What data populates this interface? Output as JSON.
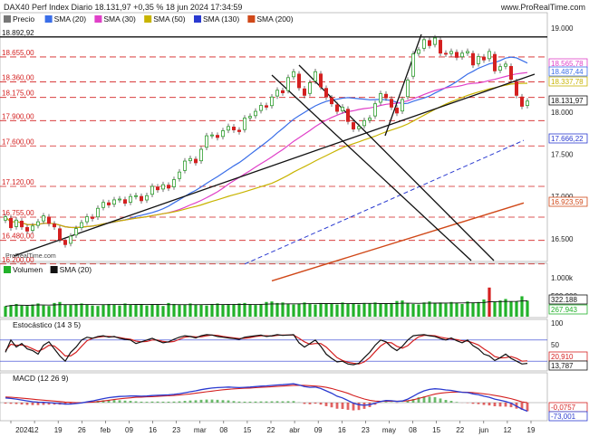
{
  "header": {
    "title": "DAX40 Perf Index Diario 18.131,97 +0,35 % 18 jun 2024 17:34:59",
    "site": "www.ProRealTime.com",
    "watermark": "ProRealTime.com"
  },
  "colors": {
    "up": "#2e9e2e",
    "down": "#d42020",
    "sma20": "#3a6ee8",
    "sma30": "#e040c8",
    "sma50": "#c8b400",
    "sma130": "#2a3ad0",
    "sma200": "#d04818",
    "grid": "#d42020",
    "trend": "#111111",
    "volume": "#22b22a",
    "stoch_k": "#111111",
    "stoch_d": "#d42020",
    "macd": "#2a3ad0",
    "signal": "#d42020"
  },
  "price_panel": {
    "legend": [
      {
        "id": "precio",
        "label": "Precio",
        "color": "#777777"
      },
      {
        "id": "sma20",
        "label": "SMA (20)",
        "color": "#3a6ee8"
      },
      {
        "id": "sma30",
        "label": "SMA (30)",
        "color": "#e040c8"
      },
      {
        "id": "sma50",
        "label": "SMA (50)",
        "color": "#c8b400"
      },
      {
        "id": "sma130",
        "label": "SMA (130)",
        "color": "#2a3ad0"
      },
      {
        "id": "sma200",
        "label": "SMA (200)",
        "color": "#d04818"
      }
    ],
    "left_levels": [
      "18.892,92",
      "18.655,00",
      "18.360,00",
      "18.175,00",
      "17.900,00",
      "17.600,00",
      "17.120,00",
      "16.755,00",
      "16.480,00",
      "16.200,00"
    ],
    "axis_ticks": [
      "19.000",
      "18.500",
      "18.000",
      "17.500",
      "17.000",
      "16.500"
    ],
    "badges": [
      {
        "text": "18.565,78",
        "color": "#e040c8"
      },
      {
        "text": "18.487,44",
        "color": "#3a6ee8"
      },
      {
        "text": "18.337,78",
        "color": "#c8b400"
      },
      {
        "text": "18.131,97",
        "color": "#111111"
      },
      {
        "text": "17.666,22",
        "color": "#2a3ad0"
      },
      {
        "text": "16.923,59",
        "color": "#d04818"
      }
    ]
  },
  "volume_panel": {
    "legend": [
      {
        "label": "Volumen",
        "color": "#22b22a"
      },
      {
        "label": "SMA (20)",
        "color": "#111111"
      }
    ],
    "axis_ticks": [
      "1.000k",
      "500.000"
    ],
    "badges": [
      {
        "text": "322.188",
        "color": "#111111"
      },
      {
        "text": "267.943",
        "color": "#22b22a"
      }
    ]
  },
  "stoch_panel": {
    "legend": "Estocástico (14 3 5)",
    "axis_ticks": [
      "100",
      "50",
      "0"
    ],
    "badges": [
      {
        "text": "20,910",
        "color": "#d42020"
      },
      {
        "text": "13,787",
        "color": "#111111"
      }
    ]
  },
  "macd_panel": {
    "legend": "MACD (12 26 9)",
    "badges": [
      {
        "text": "-0,0757",
        "color": "#d42020"
      },
      {
        "text": "-73,001",
        "color": "#2a3ad0"
      }
    ]
  },
  "x_axis": [
    "2024",
    "12",
    "19",
    "26",
    "feb",
    "09",
    "16",
    "23",
    "mar",
    "08",
    "15",
    "22",
    "abr",
    "09",
    "16",
    "23",
    "may",
    "08",
    "15",
    "22",
    "jun",
    "12",
    "19"
  ],
  "chart_data": {
    "type": "candlestick",
    "title": "DAX40 Perf Index Diario",
    "last_close": 18131.97,
    "change_pct": 0.35,
    "date": "18 jun 2024",
    "sma_last": {
      "sma20": 18487.44,
      "sma30": 18565.78,
      "sma50": 18337.78,
      "sma130": 17666.22,
      "sma200": 16923.59
    },
    "horizontal_levels": [
      18892.92,
      18655,
      18360,
      18175,
      17900,
      17600,
      17120,
      16755,
      16480,
      16200
    ],
    "close": [
      16760,
      16630,
      16720,
      16640,
      16590,
      16650,
      16700,
      16770,
      16680,
      16640,
      16490,
      16430,
      16530,
      16620,
      16690,
      16760,
      16740,
      16860,
      16930,
      16900,
      16960,
      16970,
      16920,
      17000,
      17010,
      16950,
      17010,
      17120,
      17080,
      17140,
      17100,
      17200,
      17290,
      17420,
      17450,
      17400,
      17560,
      17720,
      17730,
      17700,
      17780,
      17830,
      17790,
      17770,
      17930,
      17950,
      18010,
      18080,
      18060,
      18180,
      18260,
      18230,
      18410,
      18480,
      18290,
      18200,
      18350,
      18480,
      18300,
      18180,
      18100,
      18010,
      18060,
      17890,
      17800,
      17830,
      17900,
      17930,
      18100,
      18220,
      18170,
      18060,
      17990,
      18150,
      18380,
      18690,
      18740,
      18860,
      18790,
      18880,
      18700,
      18690,
      18720,
      18650,
      18700,
      18720,
      18560,
      18660,
      18620,
      18720,
      18490,
      18540,
      18570,
      18390,
      18200,
      18070,
      18131.97
    ],
    "volume": [
      210,
      235,
      255,
      225,
      215,
      245,
      265,
      225,
      215,
      275,
      295,
      245,
      235,
      255,
      265,
      245,
      225,
      215,
      235,
      255,
      245,
      225,
      265,
      245,
      235,
      255,
      225,
      245,
      235,
      215,
      275,
      255,
      235,
      245,
      265,
      245,
      235,
      225,
      255,
      265,
      245,
      235,
      255,
      265,
      275,
      245,
      235,
      255,
      295,
      305,
      275,
      285,
      255,
      245,
      265,
      285,
      255,
      245,
      275,
      265,
      255,
      245,
      285,
      255,
      265,
      245,
      275,
      265,
      285,
      255,
      265,
      275,
      315,
      325,
      265,
      255,
      245,
      285,
      305,
      275,
      285,
      265,
      295,
      275,
      255,
      305,
      285,
      295,
      345,
      585,
      295,
      325,
      355,
      310,
      305,
      410,
      322
    ],
    "volume_sma20_last": 267943,
    "stochastic": {
      "k": [
        45,
        80,
        60,
        70,
        55,
        50,
        40,
        65,
        75,
        55,
        35,
        20,
        45,
        60,
        80,
        88,
        85,
        90,
        92,
        88,
        90,
        85,
        82,
        80,
        70,
        75,
        80,
        85,
        78,
        72,
        75,
        82,
        88,
        92,
        90,
        86,
        92,
        95,
        94,
        90,
        88,
        86,
        84,
        82,
        88,
        90,
        92,
        94,
        90,
        92,
        95,
        93,
        94,
        95,
        72,
        60,
        70,
        80,
        62,
        40,
        28,
        18,
        20,
        12,
        10,
        14,
        30,
        45,
        65,
        80,
        75,
        60,
        50,
        62,
        80,
        92,
        94,
        95,
        92,
        90,
        84,
        80,
        86,
        78,
        72,
        80,
        64,
        55,
        40,
        35,
        22,
        30,
        40,
        28,
        20,
        12,
        13.787
      ],
      "d": [
        50,
        68,
        65,
        66,
        62,
        55,
        48,
        55,
        65,
        63,
        50,
        35,
        35,
        45,
        62,
        78,
        85,
        88,
        90,
        90,
        89,
        87,
        84,
        82,
        77,
        75,
        76,
        80,
        80,
        76,
        74,
        76,
        82,
        88,
        90,
        89,
        89,
        92,
        94,
        93,
        90,
        88,
        86,
        84,
        85,
        87,
        90,
        92,
        92,
        91,
        93,
        94,
        94,
        94,
        85,
        75,
        68,
        70,
        70,
        60,
        45,
        30,
        22,
        17,
        14,
        12,
        18,
        30,
        47,
        63,
        73,
        72,
        62,
        57,
        64,
        78,
        89,
        93,
        93,
        92,
        88,
        85,
        83,
        81,
        78,
        77,
        72,
        66,
        55,
        45,
        33,
        29,
        30,
        33,
        28,
        20,
        20.91
      ]
    },
    "macd": {
      "macd": [
        40,
        35,
        30,
        22,
        15,
        8,
        4,
        2,
        0,
        -4,
        -8,
        -12,
        -12,
        -8,
        -2,
        6,
        14,
        24,
        34,
        42,
        48,
        52,
        54,
        56,
        56,
        55,
        56,
        60,
        62,
        64,
        66,
        70,
        76,
        84,
        92,
        100,
        110,
        118,
        124,
        128,
        130,
        132,
        130,
        128,
        130,
        132,
        136,
        140,
        142,
        146,
        150,
        152,
        156,
        160,
        150,
        136,
        130,
        132,
        120,
        100,
        80,
        55,
        40,
        18,
        -5,
        -18,
        -22,
        -18,
        -5,
        10,
        18,
        16,
        10,
        14,
        30,
        55,
        80,
        100,
        112,
        118,
        115,
        108,
        104,
        95,
        88,
        85,
        75,
        68,
        55,
        45,
        30,
        20,
        10,
        -5,
        -30,
        -55,
        -73.001
      ],
      "signal": [
        48,
        45,
        42,
        38,
        34,
        29,
        25,
        21,
        17,
        13,
        9,
        5,
        2,
        0,
        0,
        2,
        5,
        9,
        14,
        20,
        26,
        32,
        37,
        41,
        45,
        47,
        49,
        51,
        53,
        56,
        58,
        61,
        65,
        69,
        74,
        80,
        86,
        92,
        98,
        104,
        109,
        113,
        117,
        119,
        122,
        124,
        127,
        130,
        132,
        135,
        138,
        141,
        144,
        147,
        148,
        147,
        144,
        141,
        137,
        130,
        120,
        107,
        94,
        79,
        61,
        45,
        31,
        20,
        13,
        11,
        12,
        13,
        12,
        12,
        16,
        24,
        35,
        48,
        61,
        72,
        80,
        85,
        89,
        90,
        89,
        88,
        85,
        81,
        75,
        69,
        61,
        53,
        44,
        34,
        21,
        6,
        -0.0757
      ]
    }
  }
}
